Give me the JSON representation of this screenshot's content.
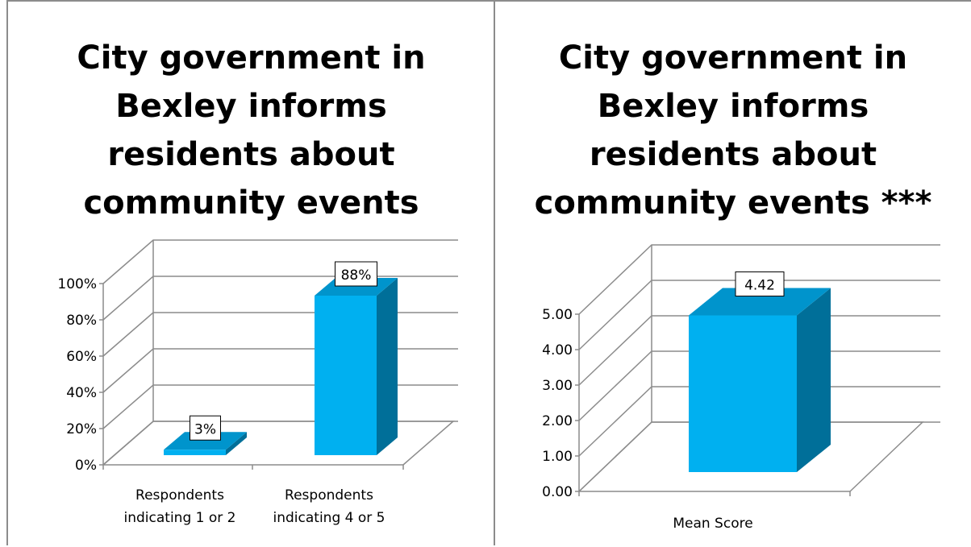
{
  "colors": {
    "bar_front": "#00b0f0",
    "bar_top": "#0094cc",
    "bar_side": "#006f99",
    "grid": "#8c8c8c"
  },
  "chart_data": [
    {
      "type": "bar",
      "title": "City government in\nBexley informs\nresidents about\ncommunity events",
      "categories": [
        "Respondents\nindicating 1 or 2",
        "Respondents\nindicating 4 or 5"
      ],
      "values": [
        3,
        88
      ],
      "data_labels": [
        "3%",
        "88%"
      ],
      "yticks": [
        "0%",
        "20%",
        "40%",
        "60%",
        "80%",
        "100%"
      ],
      "ylim": [
        0,
        100
      ],
      "grid": true,
      "style": "3d-column"
    },
    {
      "type": "bar",
      "title": "City government in\nBexley informs\nresidents about\ncommunity events ***",
      "categories": [
        "Mean Score"
      ],
      "values": [
        4.42
      ],
      "data_labels": [
        "4.42"
      ],
      "yticks": [
        "0.00",
        "1.00",
        "2.00",
        "3.00",
        "4.00",
        "5.00"
      ],
      "ylim": [
        0,
        5
      ],
      "grid": true,
      "style": "3d-column"
    }
  ]
}
